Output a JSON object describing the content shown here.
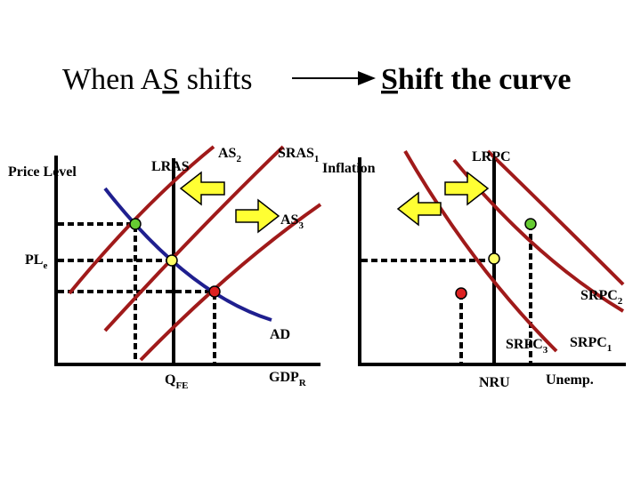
{
  "title_left_pre": "When A",
  "title_left_u": "S",
  "title_left_post": " shifts",
  "title_right_u": "S",
  "title_right_post": "hift the curve",
  "left_graph": {
    "y_label": "Price Level",
    "lras": "LRAS",
    "as2": "AS",
    "as2_sub": "2",
    "sras1": "SRAS",
    "sras1_sub": "1",
    "as3": "AS",
    "as3_sub": "3",
    "ple": "PL",
    "ple_sub": "e",
    "ad": "AD",
    "qfe": "Q",
    "qfe_sub": "FE",
    "gdpr": "GDP",
    "gdpr_sub": "R"
  },
  "right_graph": {
    "inflation": "Inflation",
    "lrpc": "LRPC",
    "srpc2": "SRPC",
    "srpc2_sub": "2",
    "srpc3": "SRPC",
    "srpc3_sub": "3",
    "srpc1": "SRPC",
    "srpc1_sub": "1",
    "nru": "NRU",
    "unemp": "Unemp."
  },
  "colors": {
    "curve_red": "#a01a1a",
    "ad_blue": "#1f1f8f",
    "arrow_yellow": "#ffff33",
    "dot_green": "#66cc33",
    "dot_yellow": "#ffff66",
    "dot_red": "#dd2222"
  }
}
